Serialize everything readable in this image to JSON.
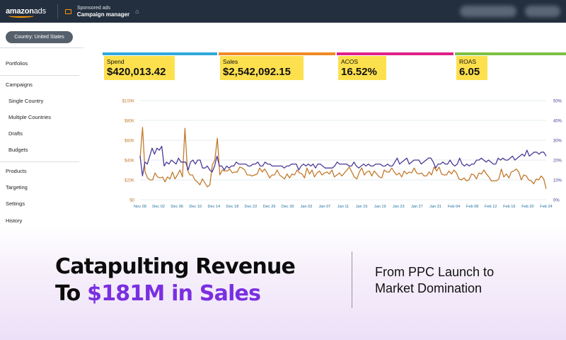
{
  "header": {
    "logo_main": "amazon",
    "logo_ads": "ads",
    "product_small": "Sponsored ads",
    "product_big": "Campaign manager",
    "home_icon": "home-icon",
    "campaign_icon": "briefcase-icon"
  },
  "country_selector": {
    "label": "Country: United States"
  },
  "sidebar": {
    "portfolios": "Portfolios",
    "campaigns": "Campaigns",
    "single_country": "Single Country",
    "multiple_countries": "Multiple Countries",
    "drafts": "Drafts",
    "budgets": "Budgets",
    "products": "Products",
    "targeting": "Targeting",
    "settings": "Settings",
    "history": "History"
  },
  "metrics": [
    {
      "label": "Spend",
      "value": "$420,013.42",
      "color": "#2fa8dc"
    },
    {
      "label": "Sales",
      "value": "$2,542,092.15",
      "color": "#f08a24"
    },
    {
      "label": "ACOS",
      "value": "16.52%",
      "color": "#e0218a"
    },
    {
      "label": "ROAS",
      "value": "6.05",
      "color": "#7bc043"
    }
  ],
  "chart_data": {
    "type": "line",
    "x_labels": [
      "Nov 28",
      "Dec 02",
      "Dec 06",
      "Dec 10",
      "Dec 14",
      "Dec 18",
      "Dec 22",
      "Dec 26",
      "Dec 30",
      "Jan 03",
      "Jan 07",
      "Jan 11",
      "Jan 15",
      "Jan 19",
      "Jan 23",
      "Jan 27",
      "Jan 31",
      "Feb 04",
      "Feb 08",
      "Feb 12",
      "Feb 16",
      "Feb 20",
      "Feb 24"
    ],
    "y_left_ticks": [
      "$0",
      "$20K",
      "$40K",
      "$60K",
      "$80K",
      "$100K"
    ],
    "y_right_ticks": [
      "0%",
      "10%",
      "20%",
      "30%",
      "40%",
      "50%"
    ],
    "y_left_range": [
      0,
      100000
    ],
    "y_right_range": [
      0,
      50
    ],
    "grid": true,
    "series": [
      {
        "color": "#c27a2c",
        "axis": "left",
        "values": [
          42000,
          73000,
          28000,
          22000,
          20000,
          20000,
          27000,
          23000,
          22000,
          23000,
          18000,
          23000,
          21000,
          28000,
          21000,
          25000,
          30000,
          23000,
          72000,
          30000,
          25000,
          25000,
          20000,
          18000,
          15000,
          21000,
          17000,
          13000,
          15000,
          35000,
          40000,
          62000,
          25000,
          30000,
          29000,
          29000,
          31000,
          27000,
          28000,
          28000,
          33000,
          32000,
          30000,
          25000,
          25000,
          24000,
          25000,
          26000,
          32000,
          28000,
          31000,
          27000,
          22000,
          25000,
          25000,
          30000,
          25000,
          23000,
          21000,
          26000,
          22000,
          26000,
          25000,
          30000,
          27000,
          26000,
          22000,
          32000,
          26000,
          30000,
          23000,
          27000,
          29000,
          25000,
          27000,
          28000,
          26000,
          30000,
          23000,
          25000,
          27000,
          24000,
          27000,
          30000,
          33000,
          28000,
          23000,
          21000,
          28000,
          32000,
          25000,
          28000,
          29000,
          24000,
          29000,
          26000,
          23000,
          22000,
          30000,
          28000,
          28000,
          32000,
          28000,
          25000,
          27000,
          23000,
          29000,
          26000,
          28000,
          27000,
          32000,
          27000,
          26000,
          27000,
          24000,
          24000,
          28000,
          25000,
          33000,
          29000,
          33000,
          26000,
          25000,
          25000,
          29000,
          26000,
          30000,
          27000,
          21000,
          20000,
          22000,
          19000,
          20000,
          26000,
          25000,
          21000,
          27000,
          26000,
          30000,
          26000,
          23000,
          19000,
          19000,
          19000,
          21000,
          31000,
          23000,
          26000,
          22000,
          28000,
          29000,
          31000,
          28000,
          20000,
          25000,
          24000,
          20000,
          19000,
          16000,
          21000,
          20000,
          24000,
          21000,
          11000
        ],
        "name": ""
      },
      {
        "color": "#4b3a96",
        "axis": "right",
        "values": [
          22,
          12,
          19,
          18,
          22,
          26,
          23,
          26,
          25,
          27,
          17,
          19,
          18,
          20,
          19,
          18,
          21,
          19,
          19,
          19,
          15,
          19,
          20,
          18,
          20,
          20,
          16,
          16,
          17,
          15,
          14,
          17,
          22,
          17,
          17,
          15,
          17,
          16,
          17,
          17,
          19,
          18,
          18,
          18,
          18,
          17,
          17,
          18,
          18,
          19,
          17,
          17,
          19,
          18,
          18,
          17,
          17,
          17,
          17,
          17,
          16,
          17,
          17,
          18,
          18,
          18,
          15,
          17,
          18,
          17,
          18,
          17,
          18,
          16,
          18,
          18,
          17,
          16,
          16,
          16,
          16,
          17,
          19,
          18,
          18,
          18,
          18,
          17,
          17,
          19,
          17,
          16,
          17,
          18,
          17,
          18,
          17,
          17,
          18,
          18,
          18,
          17,
          17,
          18,
          17,
          17,
          19,
          21,
          18,
          19,
          20,
          21,
          18,
          19,
          20,
          20,
          20,
          18,
          19,
          20,
          21,
          21,
          19,
          16,
          18,
          18,
          19,
          18,
          18,
          20,
          18,
          17,
          18,
          21,
          18,
          17,
          18,
          17,
          18,
          18,
          20,
          20,
          21,
          20,
          19,
          20,
          19,
          18,
          18,
          21,
          20,
          21,
          20,
          20,
          21,
          22,
          20,
          21,
          22,
          23,
          22,
          25,
          22,
          23,
          24,
          24,
          23,
          24,
          24,
          22
        ],
        "name": ""
      }
    ]
  },
  "banner": {
    "headline_line1": "Catapulting Revenue",
    "headline_line2_prefix": "To ",
    "headline_line2_accent": "$181M in Sales",
    "sub_line1": "From PPC Launch to",
    "sub_line2": "Market Domination",
    "accent_color": "#7a2fe0"
  }
}
